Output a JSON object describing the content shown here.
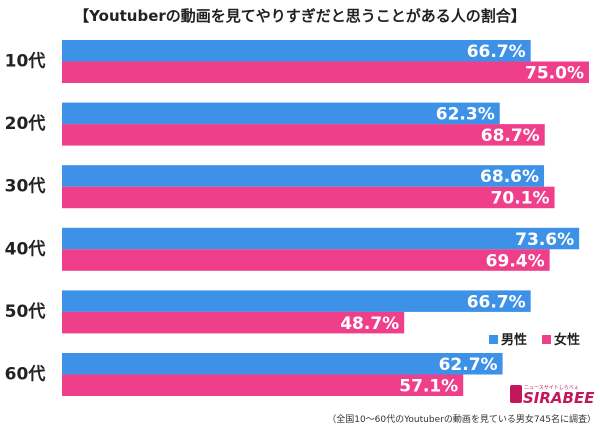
{
  "title": "【Youtuberの動画を見てやりすぎだと思うことがある人の割合】",
  "footnote": "（全国10～60代のYoutuberの動画を見ている男女745名に調査）",
  "logo": {
    "text": "SIRABEE",
    "tagline": "ニュースサイトしらべぇ"
  },
  "colors": {
    "male": "#3d92e8",
    "female": "#ef3f8a",
    "text": "#222222"
  },
  "chart_data": {
    "type": "bar",
    "orientation": "horizontal",
    "categories": [
      "10代",
      "20代",
      "30代",
      "40代",
      "50代",
      "60代"
    ],
    "series": [
      {
        "name": "男性",
        "values": [
          66.7,
          62.3,
          68.6,
          73.6,
          66.7,
          62.7
        ],
        "labels": [
          "66.7%",
          "62.3%",
          "68.6%",
          "73.6%",
          "66.7%",
          "62.7%"
        ]
      },
      {
        "name": "女性",
        "values": [
          75.0,
          68.7,
          70.1,
          69.4,
          48.7,
          57.1
        ],
        "labels": [
          "75.0%",
          "68.7%",
          "70.1%",
          "69.4%",
          "48.7%",
          "57.1%"
        ]
      }
    ],
    "xlim": [
      0,
      75
    ],
    "legend": "bottom-right",
    "grid": false
  }
}
